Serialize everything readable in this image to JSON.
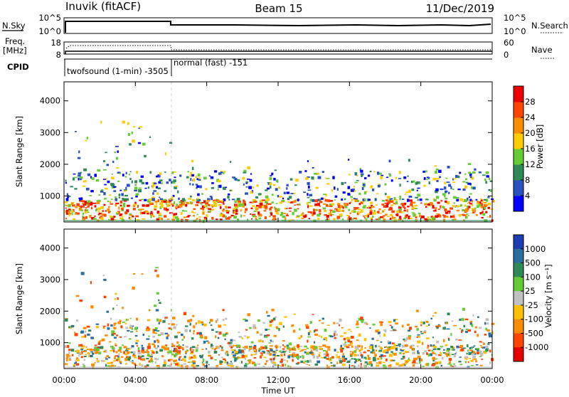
{
  "header": {
    "title": "Inuvik (fitACF)",
    "beam": "Beam 15",
    "date": "11/Dec/2019"
  },
  "strip_panels": {
    "nsky_label": "N.Sky",
    "nsky_ticks": [
      "10^5",
      "10^0"
    ],
    "nsearch_label": "N.Search",
    "nsearch_ticks": [
      "10^5",
      "10^0"
    ],
    "freq_label_1": "Freq.",
    "freq_label_2": "[MHz]",
    "freq_ticks": [
      "18",
      "8"
    ],
    "nave_label": "Nave",
    "nave_ticks": [
      "60",
      "0"
    ],
    "cpid_label": "CPID",
    "cpid_1": "twofsound (1-min) -3505",
    "cpid_2": "normal (fast) -151"
  },
  "chart_data": [
    {
      "type": "heatmap",
      "title": "",
      "ylabel": "Slant Range [km]",
      "xlabel": "",
      "y_ticks": [
        "1000",
        "2000",
        "3000",
        "4000"
      ],
      "ylim": [
        180,
        4600
      ],
      "xlim_hours": [
        0,
        24
      ],
      "colorbar": {
        "label": "Power [dB]",
        "ticks": [
          "4",
          "8",
          "12",
          "16",
          "20",
          "24",
          "28"
        ],
        "colors": [
          "#0000ff",
          "#2a52be",
          "#2e8b57",
          "#66cc33",
          "#ffcc00",
          "#ff8c00",
          "#ff4500",
          "#ee0000"
        ]
      }
    },
    {
      "type": "heatmap",
      "title": "",
      "ylabel": "Slant Range [km]",
      "xlabel": "Time UT",
      "y_ticks": [
        "1000",
        "2000",
        "3000",
        "4000"
      ],
      "ylim": [
        180,
        4600
      ],
      "xlim_hours": [
        0,
        24
      ],
      "x_ticks": [
        "00:00",
        "04:00",
        "08:00",
        "12:00",
        "16:00",
        "20:00",
        "00:00"
      ],
      "colorbar": {
        "label": "Velocity [m s⁻¹]",
        "ticks": [
          "1000",
          "500",
          "100",
          "25",
          "-25",
          "-100",
          "-500",
          "-1000"
        ],
        "colors": [
          "#1e3cb4",
          "#2a6ea0",
          "#2e8b57",
          "#66cc33",
          "#c0c0c0",
          "#ffc000",
          "#ff8c00",
          "#ff4500",
          "#e60000"
        ]
      }
    }
  ]
}
